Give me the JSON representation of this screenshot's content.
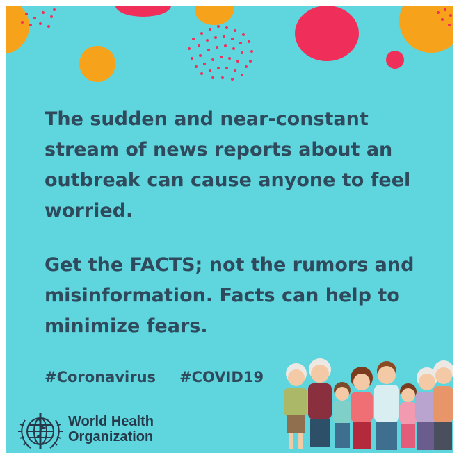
{
  "message": {
    "paragraph_1_lines": [
      "The sudden and near-constant",
      "stream of news reports about an",
      "outbreak can cause anyone to feel",
      "worried."
    ],
    "paragraph_2_lines": [
      "Get the FACTS; not the rumors and",
      "misinformation. Facts can help to",
      "minimize fears."
    ]
  },
  "hashtags": [
    "#Coronavirus",
    "#COVID19"
  ],
  "organization": {
    "name_line_1": "World Health",
    "name_line_2": "Organization",
    "logo_icon": "who-emblem-icon"
  },
  "illustration": "family-group-illustration",
  "colors": {
    "background": "#5fd5dd",
    "text": "#2f4a5c",
    "accent_pink": "#ef2f5a",
    "accent_orange": "#f7a21b"
  }
}
